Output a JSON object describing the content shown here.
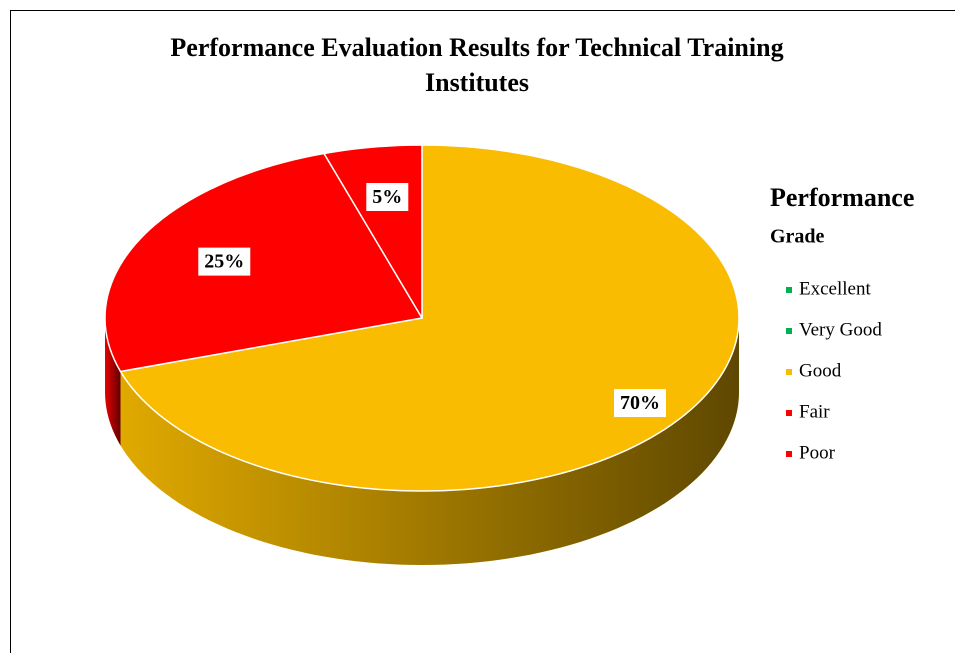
{
  "chart_data": {
    "type": "pie",
    "title": "Performance Evaluation Results for Technical Training Institutes",
    "legend_title": "Performance",
    "legend_subtitle": "Grade",
    "categories": [
      "Excellent",
      "Very Good",
      "Good",
      "Fair",
      "Poor"
    ],
    "values": [
      0,
      0,
      70,
      25,
      5
    ],
    "value_labels": [
      null,
      null,
      "70%",
      "25%",
      "5%"
    ],
    "colors": [
      "#00b050",
      "#00b050",
      "#f9bc00",
      "#ff0000",
      "#ff0000"
    ],
    "legend": "right"
  }
}
